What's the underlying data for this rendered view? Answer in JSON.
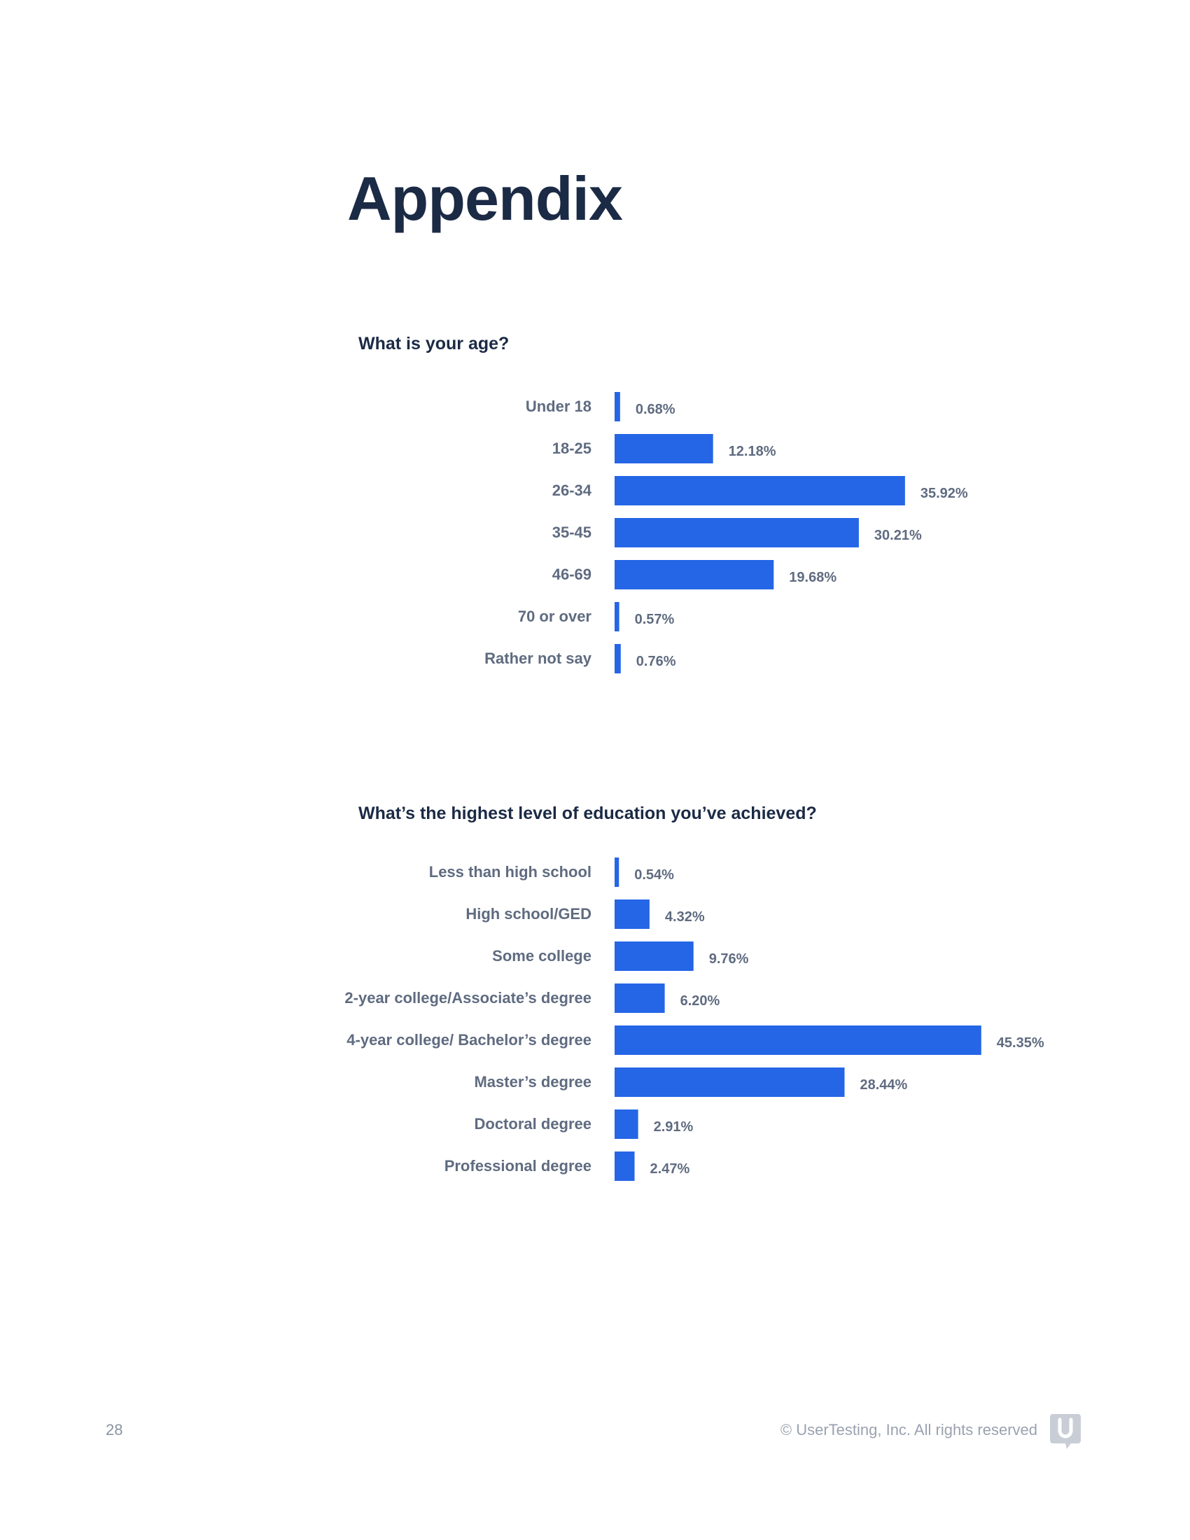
{
  "page": {
    "title": "Appendix",
    "page_number": "28",
    "copyright": "© UserTesting, Inc. All rights reserved"
  },
  "colors": {
    "bar": "#2566e6",
    "title": "#1b2a45",
    "label": "#5f6b80"
  },
  "chart_data": [
    {
      "type": "bar",
      "orientation": "horizontal",
      "title": "What is your age?",
      "categories": [
        "Under 18",
        "18-25",
        "26-34",
        "35-45",
        "46-69",
        "70 or over",
        "Rather not say"
      ],
      "values": [
        0.68,
        12.18,
        35.92,
        30.21,
        19.68,
        0.57,
        0.76
      ],
      "value_labels": [
        "0.68%",
        "12.18%",
        "35.92%",
        "30.21%",
        "19.68%",
        "0.57%",
        "0.76%"
      ],
      "unit": "%",
      "xlim": [
        0,
        50
      ],
      "grid": false
    },
    {
      "type": "bar",
      "orientation": "horizontal",
      "title": "What’s the highest level of education you’ve achieved?",
      "categories": [
        "Less than high school",
        "High school/GED",
        "Some college",
        "2-year college/Associate’s degree",
        "4-year college/ Bachelor’s degree",
        "Master’s degree",
        "Doctoral degree",
        "Professional degree"
      ],
      "values": [
        0.54,
        4.32,
        9.76,
        6.2,
        45.35,
        28.44,
        2.91,
        2.47
      ],
      "value_labels": [
        "0.54%",
        "4.32%",
        "9.76%",
        "6.20%",
        "45.35%",
        "28.44%",
        "2.91%",
        "2.47%"
      ],
      "unit": "%",
      "xlim": [
        0,
        50
      ],
      "grid": false
    }
  ]
}
